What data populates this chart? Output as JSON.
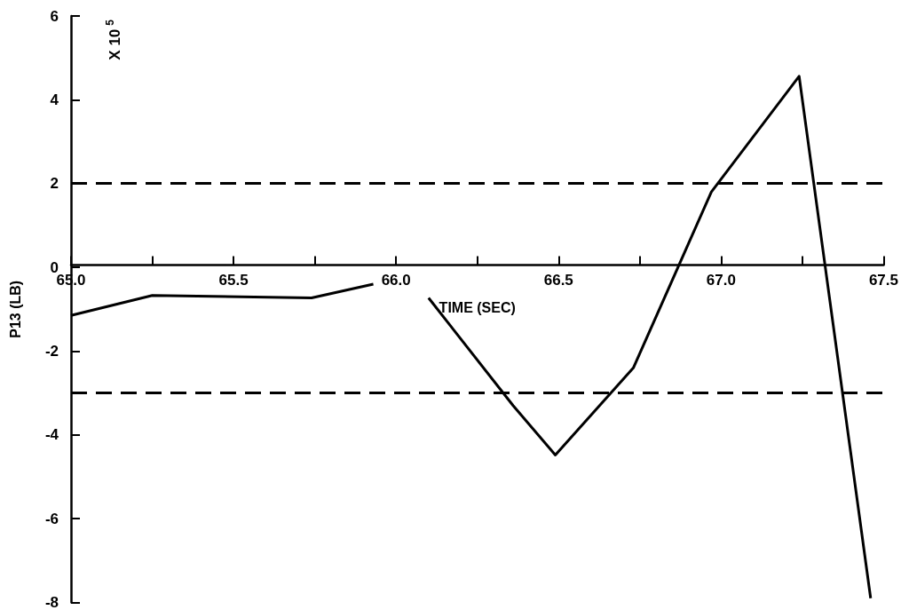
{
  "chart_data": {
    "type": "line",
    "xlabel": "TIME (SEC)",
    "ylabel": "P13 (LB)",
    "annotations": [
      "X 10$^{5}$"
    ],
    "series": [
      {
        "color": "#000000",
        "x": [
          65.0,
          65.25,
          65.74,
          65.93
        ],
        "values": [
          -1.15,
          -0.67,
          -0.73,
          -0.4
        ]
      },
      {
        "color": "#000000",
        "x": [
          66.1,
          66.36,
          66.49,
          66.73,
          66.97,
          67.24,
          67.46
        ],
        "values": [
          -0.73,
          -3.3,
          -4.48,
          -2.4,
          1.8,
          4.56,
          -7.9
        ]
      }
    ],
    "xlim": [
      65.0,
      67.5
    ],
    "xticks": [
      {
        "value": 65,
        "label": "65.0"
      },
      {
        "value": 65.25,
        "label": null
      },
      65.5,
      {
        "value": 65.75,
        "label": null
      },
      {
        "value": 66,
        "label": "66.0"
      },
      {
        "value": 66.25,
        "label": null
      },
      66.5,
      {
        "value": 66.75,
        "label": null
      },
      {
        "value": 67,
        "label": "67.0"
      },
      {
        "value": 67.25,
        "label": null
      },
      67.5
    ],
    "ylim": [
      -8,
      6
    ],
    "yticks": [
      -8,
      -6,
      -4,
      -2,
      0,
      2,
      4,
      6
    ],
    "ref_lines": [
      {
        "axis": "y",
        "value": 2,
        "line_style": "dashed"
      },
      {
        "axis": "y",
        "value": -3,
        "line_style": "dashed"
      }
    ],
    "marker": "none"
  }
}
